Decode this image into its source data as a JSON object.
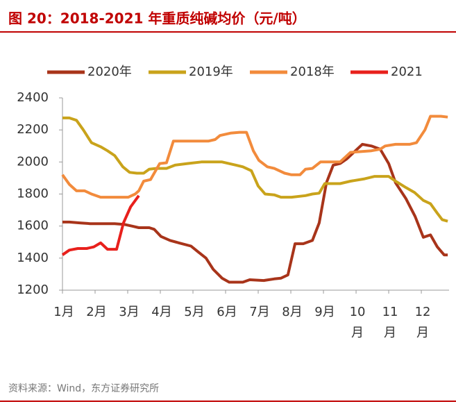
{
  "chart_data": {
    "type": "line",
    "title": "图 20：2018-2021 年重质纯碱均价（元/吨）",
    "source": "资料来源：Wind，东方证券研究所",
    "xlim": [
      1,
      12.85
    ],
    "xticks": [
      {
        "value": 1,
        "label": "1月"
      },
      {
        "value": 2,
        "label": "2月"
      },
      {
        "value": 3,
        "label": "3月"
      },
      {
        "value": 4,
        "label": "4月"
      },
      {
        "value": 5,
        "label": "5月"
      },
      {
        "value": 6,
        "label": "6月"
      },
      {
        "value": 7,
        "label": "7月"
      },
      {
        "value": 8,
        "label": "8月"
      },
      {
        "value": 9,
        "label": "9月"
      },
      {
        "value": 10,
        "label": "10月"
      },
      {
        "value": 11,
        "label": "11月"
      },
      {
        "value": 12,
        "label": "12月"
      }
    ],
    "ylim": [
      1200,
      2400
    ],
    "yticks": [
      1200,
      1400,
      1600,
      1800,
      2000,
      2200,
      2400
    ],
    "grid": false,
    "series": [
      {
        "name": "2020年",
        "color": "#a8341a",
        "x": [
          1.0,
          1.21,
          1.53,
          1.85,
          2.28,
          2.6,
          2.91,
          3.13,
          3.34,
          3.66,
          3.81,
          4.02,
          4.3,
          4.57,
          4.94,
          5.15,
          5.4,
          5.62,
          5.89,
          6.11,
          6.53,
          6.74,
          7.17,
          7.49,
          7.7,
          7.91,
          8.13,
          8.38,
          8.66,
          8.87,
          9.09,
          9.3,
          9.51,
          9.72,
          9.98,
          10.19,
          10.47,
          10.74,
          11.0,
          11.21,
          11.53,
          11.81,
          12.06,
          12.28,
          12.49,
          12.7,
          12.81
        ],
        "values": [
          1625,
          1625,
          1620,
          1615,
          1615,
          1615,
          1610,
          1600,
          1590,
          1590,
          1580,
          1535,
          1510,
          1495,
          1475,
          1440,
          1400,
          1330,
          1275,
          1250,
          1250,
          1265,
          1260,
          1270,
          1275,
          1295,
          1490,
          1490,
          1510,
          1620,
          1870,
          1980,
          1990,
          2020,
          2070,
          2110,
          2100,
          2080,
          1990,
          1870,
          1770,
          1660,
          1530,
          1545,
          1470,
          1420,
          1420
        ]
      },
      {
        "name": "2019年",
        "color": "#c9a31b",
        "x": [
          1.0,
          1.21,
          1.43,
          1.64,
          1.89,
          2.17,
          2.38,
          2.6,
          2.85,
          3.06,
          3.28,
          3.49,
          3.66,
          3.87,
          4.19,
          4.45,
          4.83,
          5.26,
          5.89,
          6.32,
          6.53,
          6.79,
          7.0,
          7.21,
          7.49,
          7.7,
          8.02,
          8.45,
          8.66,
          8.87,
          9.04,
          9.51,
          9.83,
          10.26,
          10.57,
          11.0,
          11.21,
          11.53,
          11.79,
          12.06,
          12.28,
          12.49,
          12.64,
          12.81
        ],
        "values": [
          2275,
          2275,
          2260,
          2200,
          2120,
          2095,
          2070,
          2040,
          1970,
          1935,
          1930,
          1930,
          1955,
          1960,
          1960,
          1980,
          1990,
          2000,
          2000,
          1980,
          1970,
          1945,
          1850,
          1800,
          1795,
          1780,
          1780,
          1790,
          1800,
          1805,
          1865,
          1865,
          1880,
          1895,
          1910,
          1910,
          1880,
          1840,
          1810,
          1760,
          1740,
          1680,
          1640,
          1630
        ]
      },
      {
        "name": "2018年",
        "color": "#f28b3c",
        "x": [
          1.0,
          1.21,
          1.43,
          1.68,
          1.89,
          2.17,
          2.49,
          3.02,
          3.23,
          3.34,
          3.49,
          3.7,
          3.98,
          4.19,
          4.4,
          4.72,
          5.47,
          5.68,
          5.83,
          6.15,
          6.43,
          6.64,
          6.85,
          7.02,
          7.28,
          7.49,
          7.81,
          8.02,
          8.28,
          8.45,
          8.66,
          8.91,
          9.19,
          9.51,
          9.83,
          10.47,
          10.74,
          10.89,
          11.21,
          11.64,
          11.85,
          12.11,
          12.28,
          12.6,
          12.81
        ],
        "values": [
          1920,
          1860,
          1820,
          1820,
          1800,
          1780,
          1780,
          1780,
          1800,
          1820,
          1880,
          1890,
          1990,
          1995,
          2130,
          2130,
          2130,
          2140,
          2165,
          2180,
          2185,
          2185,
          2070,
          2010,
          1970,
          1960,
          1930,
          1920,
          1920,
          1955,
          1960,
          2000,
          2000,
          2000,
          2060,
          2070,
          2080,
          2100,
          2110,
          2110,
          2120,
          2200,
          2285,
          2285,
          2280
        ]
      },
      {
        "name": "2021",
        "color": "#e8201c",
        "x": [
          1.0,
          1.21,
          1.47,
          1.74,
          1.96,
          2.17,
          2.38,
          2.66,
          2.87,
          3.09,
          3.34
        ],
        "values": [
          1420,
          1450,
          1460,
          1460,
          1470,
          1495,
          1455,
          1455,
          1620,
          1720,
          1790
        ]
      }
    ]
  }
}
